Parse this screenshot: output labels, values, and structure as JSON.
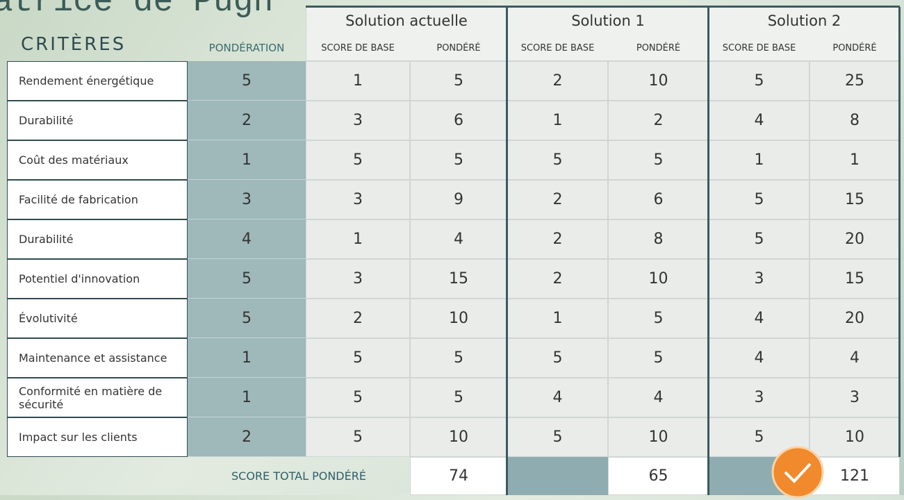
{
  "title": "atrice de Pugh",
  "header": {
    "criteria_label": "CRITÈRES",
    "weight_label": "PONDÉRATION",
    "solutions": [
      {
        "name": "Solution actuelle",
        "base_label": "SCORE DE BASE",
        "weighted_label": "PONDÉRÉ"
      },
      {
        "name": "Solution 1",
        "base_label": "SCORE DE BASE",
        "weighted_label": "PONDÉRÉ"
      },
      {
        "name": "Solution 2",
        "base_label": "SCORE DE BASE",
        "weighted_label": "PONDÉRÉ"
      }
    ]
  },
  "rows": [
    {
      "criterion": "Rendement énergétique",
      "weight": 5,
      "scores": [
        [
          1,
          5
        ],
        [
          2,
          10
        ],
        [
          5,
          25
        ]
      ]
    },
    {
      "criterion": "Durabilité",
      "weight": 2,
      "scores": [
        [
          3,
          6
        ],
        [
          1,
          2
        ],
        [
          4,
          8
        ]
      ]
    },
    {
      "criterion": "Coût des matériaux",
      "weight": 1,
      "scores": [
        [
          5,
          5
        ],
        [
          5,
          5
        ],
        [
          1,
          1
        ]
      ]
    },
    {
      "criterion": "Facilité de fabrication",
      "weight": 3,
      "scores": [
        [
          3,
          9
        ],
        [
          2,
          6
        ],
        [
          5,
          15
        ]
      ]
    },
    {
      "criterion": "Durabilité",
      "weight": 4,
      "scores": [
        [
          1,
          4
        ],
        [
          2,
          8
        ],
        [
          5,
          20
        ]
      ]
    },
    {
      "criterion": "Potentiel d'innovation",
      "weight": 5,
      "scores": [
        [
          3,
          15
        ],
        [
          2,
          10
        ],
        [
          3,
          15
        ]
      ]
    },
    {
      "criterion": "Évolutivité",
      "weight": 5,
      "scores": [
        [
          2,
          10
        ],
        [
          1,
          5
        ],
        [
          4,
          20
        ]
      ]
    },
    {
      "criterion": "Maintenance et assistance",
      "weight": 1,
      "scores": [
        [
          5,
          5
        ],
        [
          5,
          5
        ],
        [
          4,
          4
        ]
      ]
    },
    {
      "criterion": "Conformité en matière de sécurité",
      "weight": 1,
      "scores": [
        [
          5,
          5
        ],
        [
          4,
          4
        ],
        [
          3,
          3
        ]
      ]
    },
    {
      "criterion": "Impact sur les clients",
      "weight": 2,
      "scores": [
        [
          5,
          10
        ],
        [
          5,
          10
        ],
        [
          5,
          10
        ]
      ]
    }
  ],
  "total_label": "SCORE TOTAL PONDÉRÉ",
  "totals": [
    74,
    65,
    121
  ]
}
